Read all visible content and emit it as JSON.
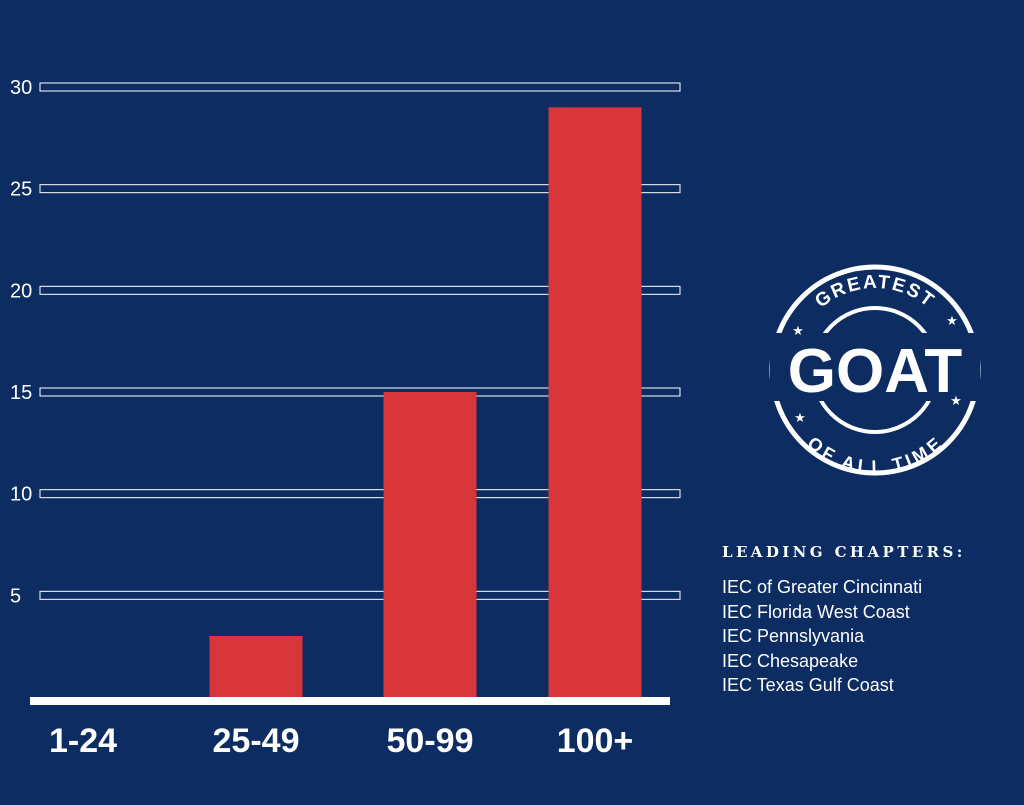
{
  "chart_data": {
    "type": "bar",
    "categories": [
      "1-24",
      "25-49",
      "50-99",
      "100+"
    ],
    "values": [
      0,
      3,
      15,
      29
    ],
    "yticks": [
      5,
      10,
      15,
      20,
      25,
      30
    ],
    "ylim": [
      0,
      30
    ],
    "title": "",
    "xlabel": "",
    "ylabel": "",
    "grid": true,
    "colors": {
      "bar": "#d8363a",
      "background": "#0c2c62",
      "text": "#ffffff"
    }
  },
  "badge": {
    "top_text": "GREATEST",
    "main_text": "GOAT",
    "bottom_text": "OF ALL TIME"
  },
  "sidebar": {
    "heading": "LEADING CHAPTERS:",
    "chapters": [
      "IEC of Greater Cincinnati",
      "IEC Florida West Coast",
      "IEC Pennslyvania",
      "IEC Chesapeake",
      "IEC Texas Gulf Coast"
    ]
  }
}
